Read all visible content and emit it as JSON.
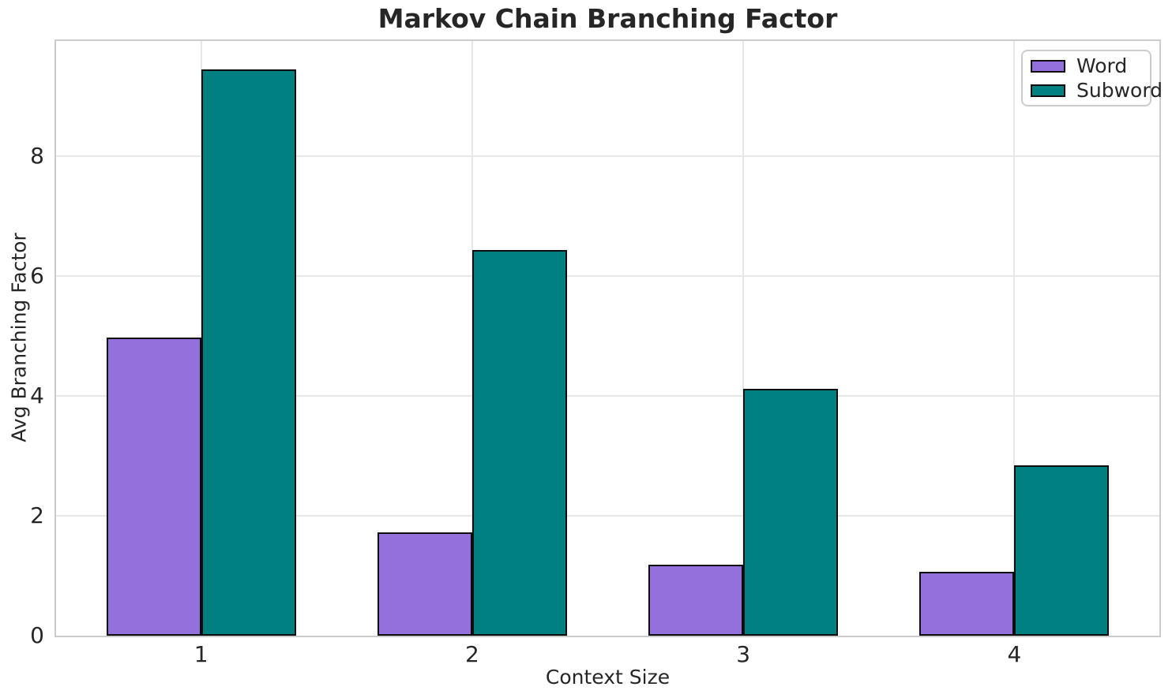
{
  "chart_data": {
    "type": "bar",
    "title": "Markov Chain Branching Factor",
    "xlabel": "Context Size",
    "ylabel": "Avg Branching Factor",
    "categories": [
      "1",
      "2",
      "3",
      "4"
    ],
    "series": [
      {
        "name": "Word",
        "color": "#9370DB",
        "values": [
          4.97,
          1.72,
          1.19,
          1.06
        ]
      },
      {
        "name": "Subword",
        "color": "#008080",
        "values": [
          9.45,
          6.44,
          4.12,
          2.84
        ]
      }
    ],
    "bar_width": 0.35,
    "bar_edge_color": "#0d0d0d",
    "ylim": [
      0,
      9.92
    ],
    "yticks": [
      0,
      2,
      4,
      6,
      8
    ],
    "grid": true,
    "grid_color": "#e7e7e7",
    "spine_color": "#cccccc",
    "text_color": "#262626",
    "legend_position": "upper right"
  }
}
